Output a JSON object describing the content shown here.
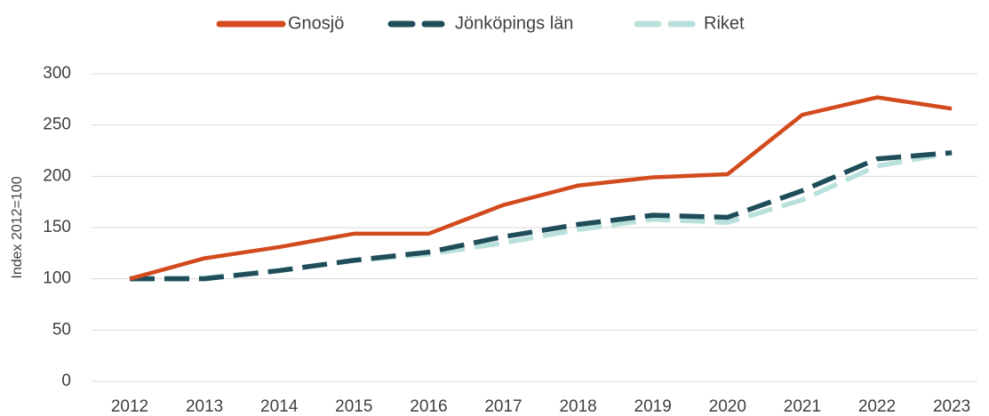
{
  "chart_data": {
    "type": "line",
    "y_label": "Index 2012=100",
    "categories": [
      "2012",
      "2013",
      "2014",
      "2015",
      "2016",
      "2017",
      "2018",
      "2019",
      "2020",
      "2021",
      "2022",
      "2023"
    ],
    "series": [
      {
        "name": "Gnosjö",
        "color": "#d24a1e",
        "line_style": "solid",
        "values": [
          100,
          120,
          131,
          144,
          144,
          172,
          191,
          199,
          202,
          260,
          277,
          266
        ]
      },
      {
        "name": "Jönköpings län",
        "color": "#1f4e5a",
        "line_style": "dashed",
        "values": [
          100,
          100,
          108,
          118,
          126,
          141,
          153,
          162,
          160,
          186,
          217,
          223
        ]
      },
      {
        "name": "Riket",
        "color": "#b9e1db",
        "line_style": "dashed",
        "values": [
          100,
          101,
          108,
          118,
          124,
          135,
          148,
          158,
          155,
          177,
          210,
          223
        ]
      }
    ],
    "ylim": [
      0,
      300
    ],
    "yticks": [
      0,
      50,
      100,
      150,
      200,
      250,
      300
    ],
    "grid": true,
    "legend": "top"
  }
}
